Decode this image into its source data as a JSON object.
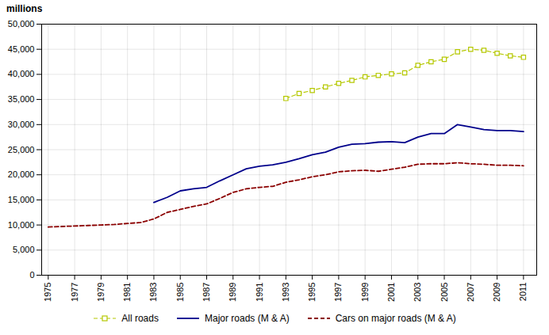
{
  "chart_data": {
    "type": "line",
    "ylabel": "millions",
    "x": [
      1975,
      1976,
      1977,
      1978,
      1979,
      1980,
      1981,
      1982,
      1983,
      1984,
      1985,
      1986,
      1987,
      1988,
      1989,
      1990,
      1991,
      1992,
      1993,
      1994,
      1995,
      1996,
      1997,
      1998,
      1999,
      2000,
      2001,
      2002,
      2003,
      2004,
      2005,
      2006,
      2007,
      2008,
      2009,
      2010,
      2011
    ],
    "series": [
      {
        "name": "All roads",
        "color": "#b5c800",
        "marker": "square",
        "line_style": "dashed",
        "values": [
          null,
          null,
          null,
          null,
          null,
          null,
          null,
          null,
          null,
          null,
          null,
          null,
          null,
          null,
          null,
          null,
          null,
          null,
          35200,
          36200,
          36800,
          37500,
          38200,
          38800,
          39500,
          39800,
          40100,
          40300,
          41800,
          42500,
          43000,
          44500,
          45000,
          44800,
          44200,
          43700,
          43400
        ]
      },
      {
        "name": "Major roads (M & A)",
        "color": "#00008b",
        "line_style": "solid",
        "values": [
          null,
          null,
          null,
          null,
          null,
          null,
          null,
          null,
          14500,
          15500,
          16800,
          17200,
          17500,
          18800,
          20000,
          21200,
          21700,
          22000,
          22500,
          23200,
          24000,
          24500,
          25500,
          26100,
          26200,
          26500,
          26600,
          26400,
          27500,
          28200,
          28200,
          30000,
          29500,
          29000,
          28800,
          28800,
          28600
        ]
      },
      {
        "name": "Cars on major roads (M & A)",
        "color": "#8b0000",
        "line_style": "dashed",
        "values": [
          9600,
          9700,
          9800,
          9900,
          10000,
          10100,
          10300,
          10500,
          11200,
          12500,
          13100,
          13700,
          14200,
          15300,
          16500,
          17200,
          17500,
          17700,
          18500,
          19000,
          19600,
          20000,
          20600,
          20800,
          20900,
          20700,
          21100,
          21500,
          22100,
          22200,
          22200,
          22400,
          22200,
          22100,
          21900,
          21900,
          21800
        ]
      }
    ],
    "xlim": [
      1974.5,
      2012.0
    ],
    "xticks": [
      1975,
      1977,
      1979,
      1981,
      1983,
      1985,
      1987,
      1989,
      1991,
      1993,
      1995,
      1997,
      1999,
      2001,
      2003,
      2005,
      2007,
      2009,
      2011
    ],
    "ylim": [
      0,
      50000
    ],
    "yticks": [
      0,
      {
        "value": 5000,
        "label": "5,000"
      },
      {
        "value": 10000,
        "label": "10,000"
      },
      {
        "value": 15000,
        "label": "15,000"
      },
      {
        "value": 20000,
        "label": "20,000"
      },
      {
        "value": 25000,
        "label": "25,000"
      },
      {
        "value": 30000,
        "label": "30,000"
      },
      {
        "value": 35000,
        "label": "35,000"
      },
      {
        "value": 40000,
        "label": "40,000"
      },
      {
        "value": 45000,
        "label": "45,000"
      },
      {
        "value": 50000,
        "label": "50,000"
      }
    ],
    "grid": true,
    "legend": "bottom"
  }
}
